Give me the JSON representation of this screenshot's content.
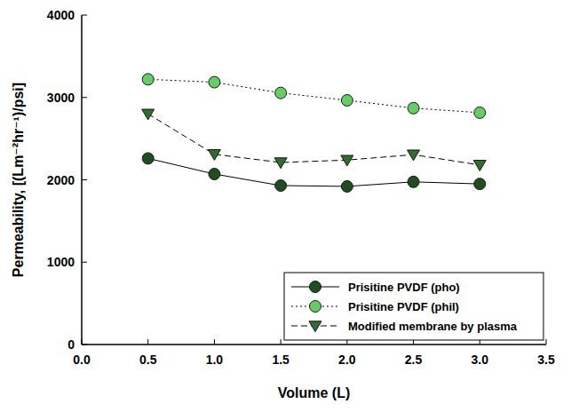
{
  "chart_data": {
    "type": "line",
    "x_label": "Volume (L)",
    "y_label": "Permeability, [(Lm⁻²hr⁻¹)/psi]",
    "x": [
      0.5,
      1.0,
      1.5,
      2.0,
      2.5,
      3.0
    ],
    "xlim": [
      0,
      3.5
    ],
    "xticks": [
      {
        "value": 0,
        "label": "0.0"
      },
      0.5,
      {
        "value": 1,
        "label": "1.0"
      },
      1.5,
      {
        "value": 2,
        "label": "2.0"
      },
      2.5,
      {
        "value": 3,
        "label": "3.0"
      },
      3.5
    ],
    "ylim": [
      0,
      4000
    ],
    "yticks": [
      0,
      1000,
      2000,
      3000,
      4000
    ],
    "grid": false,
    "legend": "lower right",
    "series": [
      {
        "name": "Prisitine PVDF (pho)",
        "color": "#1f4d1f",
        "marker": "circle",
        "line_style": "solid",
        "values": [
          2260,
          2070,
          1930,
          1920,
          1975,
          1950
        ]
      },
      {
        "name": "Prisitine PVDF (phil)",
        "color": "#66cc66",
        "marker": "circle",
        "line_style": "dotted",
        "values": [
          3220,
          3185,
          3055,
          2965,
          2870,
          2815
        ]
      },
      {
        "name": "Modified membrane by plasma",
        "color": "#2f6e2f",
        "marker": "triangle-down",
        "line_style": "dashed",
        "values": [
          2800,
          2310,
          2210,
          2240,
          2305,
          2180
        ]
      }
    ]
  }
}
